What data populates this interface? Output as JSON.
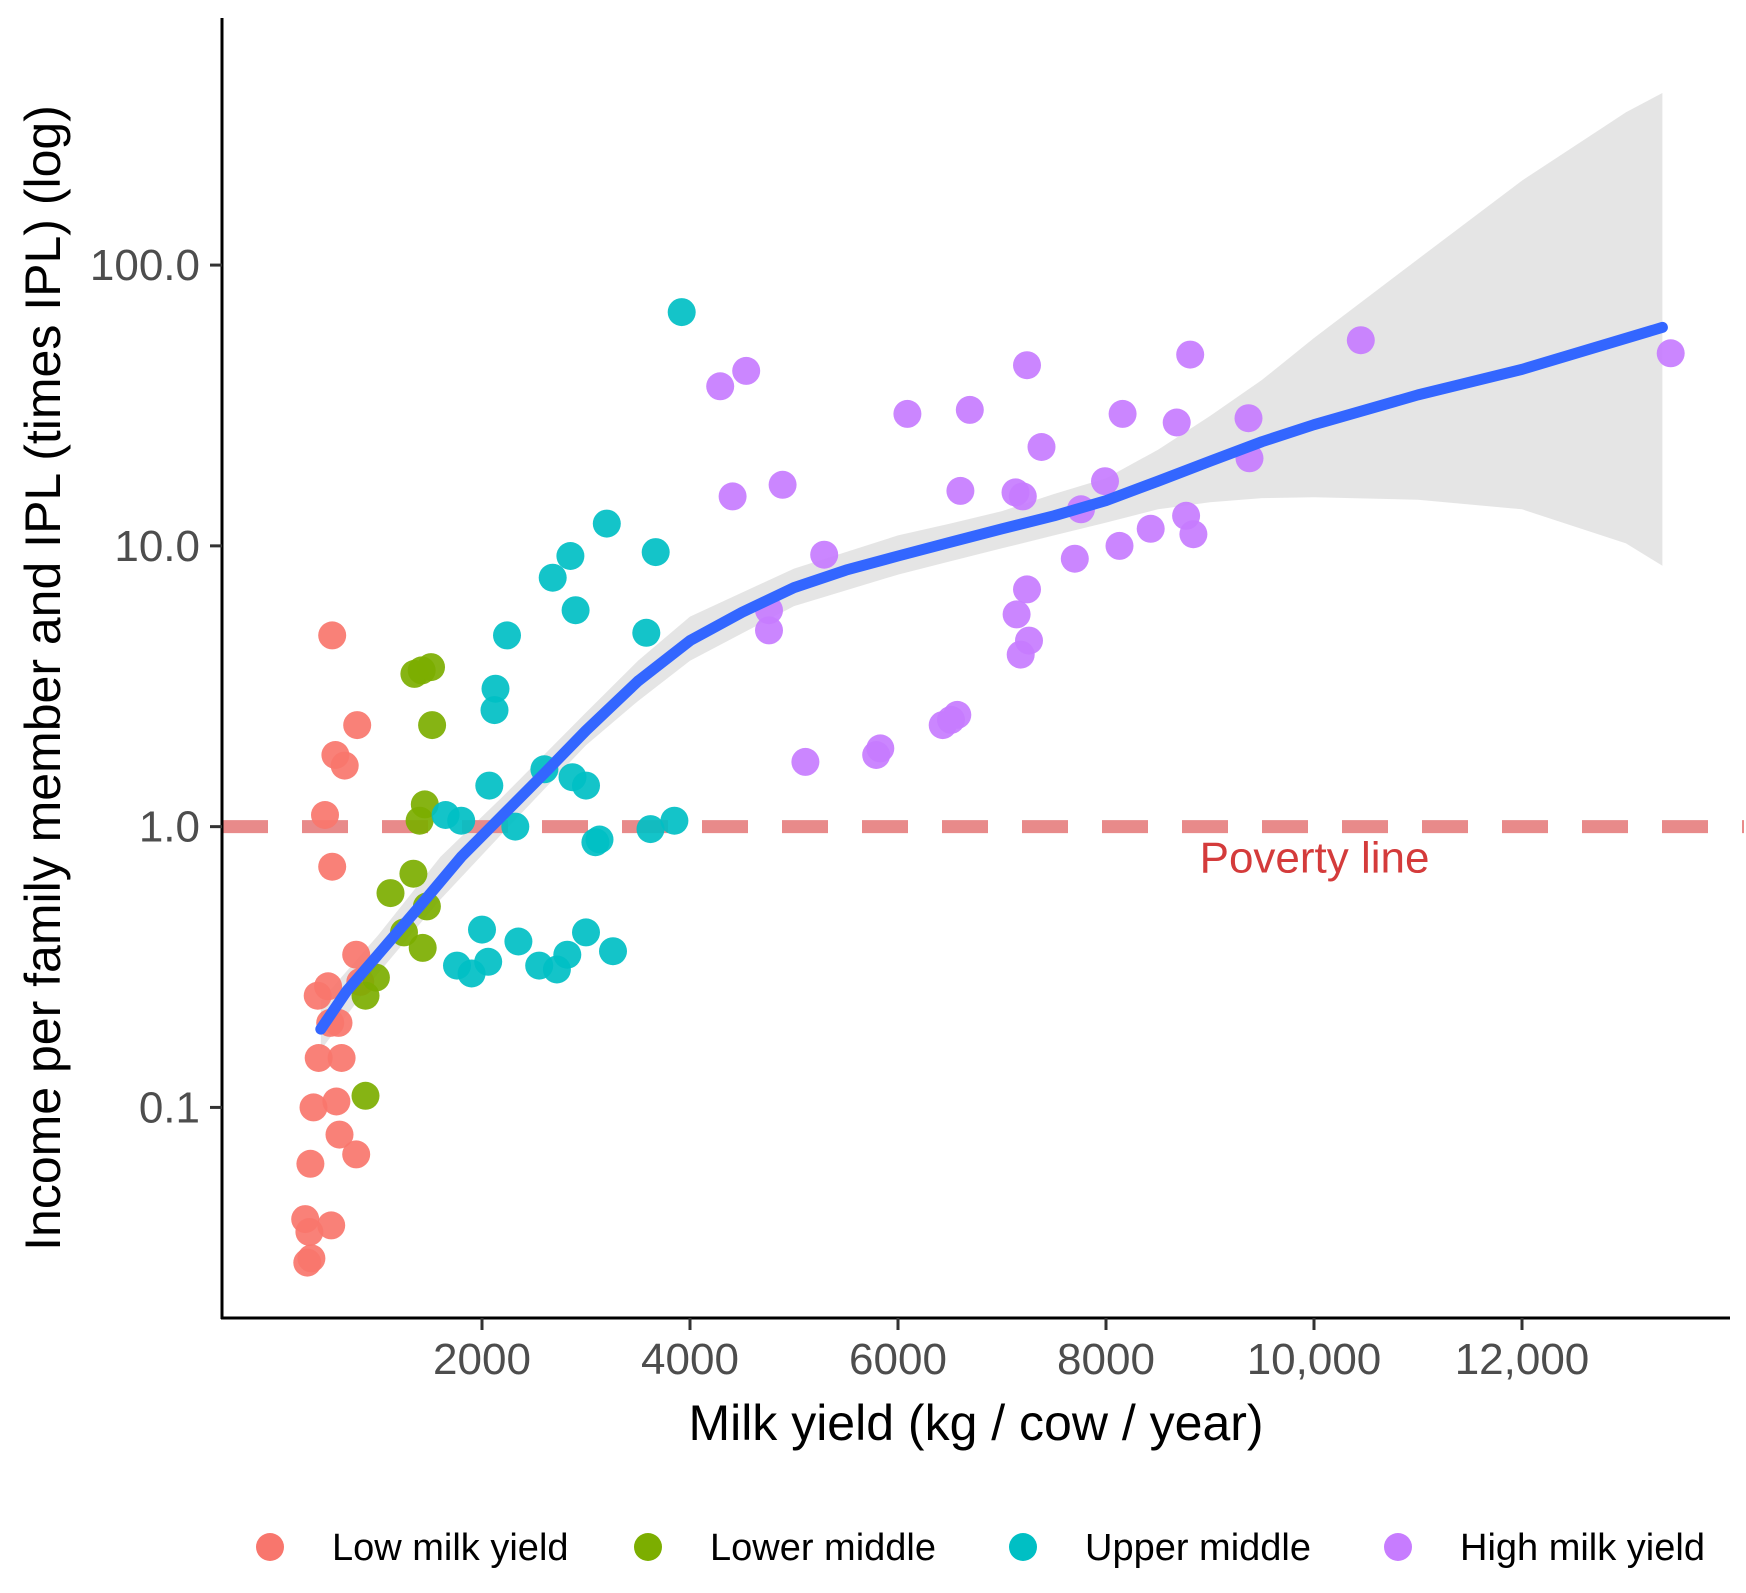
{
  "chart_data": {
    "type": "scatter",
    "title": "",
    "xlabel": "Milk yield (kg / cow / year)",
    "ylabel": "Income per family member and IPL (times IPL) (log)",
    "xlim": [
      -500,
      14000
    ],
    "ylim_log10": [
      -1.75,
      2.88
    ],
    "y_scale": "log10",
    "x_ticks": [
      {
        "value": 2000,
        "label": "2000"
      },
      {
        "value": 4000,
        "label": "4000"
      },
      {
        "value": 6000,
        "label": "6000"
      },
      {
        "value": 8000,
        "label": "8000"
      },
      {
        "value": 10000,
        "label": "10,000"
      },
      {
        "value": 12000,
        "label": "12,000"
      }
    ],
    "y_ticks": [
      {
        "value": 0.1,
        "label": "0.1"
      },
      {
        "value": 1.0,
        "label": "1.0"
      },
      {
        "value": 10.0,
        "label": "10.0"
      },
      {
        "value": 100.0,
        "label": "100.0"
      }
    ],
    "grid": false,
    "legend_position": "bottom",
    "reference_line": {
      "y": 1.0,
      "label": "Poverty line",
      "color": "#e88a8a",
      "label_color": "#d43b3b",
      "style": "dashed"
    },
    "colors": {
      "Low milk yield": "#F8766D",
      "Lower middle": "#7CAE00",
      "Upper middle": "#00BFC4",
      "High milk yield": "#C77CFF",
      "smooth_line": "#3366FF",
      "ribbon": "#dcdcdc"
    },
    "series": [
      {
        "name": "Low milk yield",
        "points": [
          [
            560,
            4.8
          ],
          [
            590,
            1.8
          ],
          [
            680,
            1.65
          ],
          [
            800,
            2.3
          ],
          [
            490,
            1.1
          ],
          [
            560,
            0.72
          ],
          [
            790,
            0.35
          ],
          [
            830,
            0.28
          ],
          [
            420,
            0.25
          ],
          [
            520,
            0.27
          ],
          [
            620,
            0.2
          ],
          [
            540,
            0.2
          ],
          [
            430,
            0.15
          ],
          [
            650,
            0.15
          ],
          [
            380,
            0.1
          ],
          [
            600,
            0.105
          ],
          [
            630,
            0.08
          ],
          [
            790,
            0.068
          ],
          [
            350,
            0.063
          ],
          [
            300,
            0.04
          ],
          [
            550,
            0.038
          ],
          [
            340,
            0.036
          ],
          [
            360,
            0.029
          ],
          [
            320,
            0.028
          ]
        ]
      },
      {
        "name": "Lower middle",
        "points": [
          [
            1350,
            3.5
          ],
          [
            1420,
            3.6
          ],
          [
            1510,
            3.7
          ],
          [
            1520,
            2.3
          ],
          [
            1450,
            1.2
          ],
          [
            1400,
            1.05
          ],
          [
            1340,
            0.68
          ],
          [
            1120,
            0.58
          ],
          [
            1470,
            0.52
          ],
          [
            1250,
            0.42
          ],
          [
            1430,
            0.37
          ],
          [
            980,
            0.29
          ],
          [
            880,
            0.25
          ],
          [
            880,
            0.11
          ]
        ]
      },
      {
        "name": "Upper middle",
        "points": [
          [
            3920,
            68
          ],
          [
            3200,
            12
          ],
          [
            3670,
            9.5
          ],
          [
            2850,
            9.2
          ],
          [
            2680,
            7.7
          ],
          [
            2900,
            5.9
          ],
          [
            3580,
            4.9
          ],
          [
            2240,
            4.8
          ],
          [
            2130,
            3.1
          ],
          [
            2120,
            2.6
          ],
          [
            2600,
            1.6
          ],
          [
            2870,
            1.5
          ],
          [
            3000,
            1.4
          ],
          [
            2070,
            1.4
          ],
          [
            1650,
            1.1
          ],
          [
            1800,
            1.05
          ],
          [
            3850,
            1.05
          ],
          [
            2320,
            1.0
          ],
          [
            3620,
            0.98
          ],
          [
            3130,
            0.9
          ],
          [
            3090,
            0.88
          ],
          [
            2000,
            0.43
          ],
          [
            2350,
            0.39
          ],
          [
            3000,
            0.42
          ],
          [
            2820,
            0.35
          ],
          [
            2720,
            0.31
          ],
          [
            3260,
            0.36
          ],
          [
            1760,
            0.32
          ],
          [
            1900,
            0.3
          ],
          [
            2060,
            0.33
          ],
          [
            2550,
            0.32
          ]
        ]
      },
      {
        "name": "High milk yield",
        "points": [
          [
            4290,
            37
          ],
          [
            4540,
            42
          ],
          [
            4410,
            15
          ],
          [
            4890,
            16.5
          ],
          [
            5290,
            9.3
          ],
          [
            4760,
            5.9
          ],
          [
            4760,
            5.0
          ],
          [
            5110,
            1.7
          ],
          [
            5790,
            1.8
          ],
          [
            5830,
            1.9
          ],
          [
            6090,
            29.5
          ],
          [
            6600,
            15.7
          ],
          [
            6690,
            30.5
          ],
          [
            6430,
            2.3
          ],
          [
            6570,
            2.5
          ],
          [
            6510,
            2.4
          ],
          [
            7130,
            15.5
          ],
          [
            7240,
            44
          ],
          [
            7380,
            22.5
          ],
          [
            7200,
            15
          ],
          [
            7240,
            7
          ],
          [
            7140,
            5.7
          ],
          [
            7180,
            4.1
          ],
          [
            7260,
            4.6
          ],
          [
            7700,
            9
          ],
          [
            7760,
            13.5
          ],
          [
            7990,
            17
          ],
          [
            8130,
            10
          ],
          [
            8160,
            29.5
          ],
          [
            8430,
            11.5
          ],
          [
            8680,
            27.5
          ],
          [
            8810,
            48
          ],
          [
            8770,
            12.8
          ],
          [
            8840,
            11
          ],
          [
            9370,
            28.5
          ],
          [
            9380,
            20.5
          ],
          [
            10450,
            54
          ],
          [
            13430,
            48.5
          ]
        ]
      }
    ],
    "smooth": {
      "name": "loess fit",
      "points": [
        [
          450,
          0.19
        ],
        [
          700,
          0.26
        ],
        [
          1000,
          0.35
        ],
        [
          1400,
          0.52
        ],
        [
          1800,
          0.78
        ],
        [
          2200,
          1.1
        ],
        [
          2600,
          1.55
        ],
        [
          3000,
          2.2
        ],
        [
          3500,
          3.3
        ],
        [
          4000,
          4.6
        ],
        [
          4500,
          5.8
        ],
        [
          5000,
          7.1
        ],
        [
          5500,
          8.2
        ],
        [
          6000,
          9.2
        ],
        [
          6500,
          10.3
        ],
        [
          7000,
          11.5
        ],
        [
          7500,
          12.8
        ],
        [
          8000,
          14.5
        ],
        [
          8500,
          17
        ],
        [
          9000,
          20
        ],
        [
          9500,
          23.5
        ],
        [
          10000,
          27
        ],
        [
          11000,
          34.5
        ],
        [
          12000,
          42.5
        ],
        [
          13350,
          60
        ]
      ],
      "ribbon": [
        [
          450,
          0.16,
          0.24
        ],
        [
          1000,
          0.3,
          0.41
        ],
        [
          1600,
          0.55,
          0.78
        ],
        [
          2200,
          0.95,
          1.28
        ],
        [
          3000,
          1.95,
          2.55
        ],
        [
          3500,
          2.8,
          3.9
        ],
        [
          4000,
          3.9,
          5.6
        ],
        [
          5000,
          6.1,
          8.3
        ],
        [
          6000,
          7.9,
          10.9
        ],
        [
          6500,
          8.8,
          12.0
        ],
        [
          7000,
          9.8,
          13.3
        ],
        [
          7500,
          10.9,
          15.3
        ],
        [
          8000,
          12.1,
          17.4
        ],
        [
          8500,
          13.5,
          22
        ],
        [
          9000,
          14.3,
          29
        ],
        [
          9500,
          14.8,
          39
        ],
        [
          10000,
          14.9,
          55
        ],
        [
          11000,
          14.6,
          105
        ],
        [
          12000,
          13.5,
          200
        ],
        [
          13000,
          10.2,
          350
        ],
        [
          13350,
          8.5,
          410
        ]
      ]
    }
  }
}
